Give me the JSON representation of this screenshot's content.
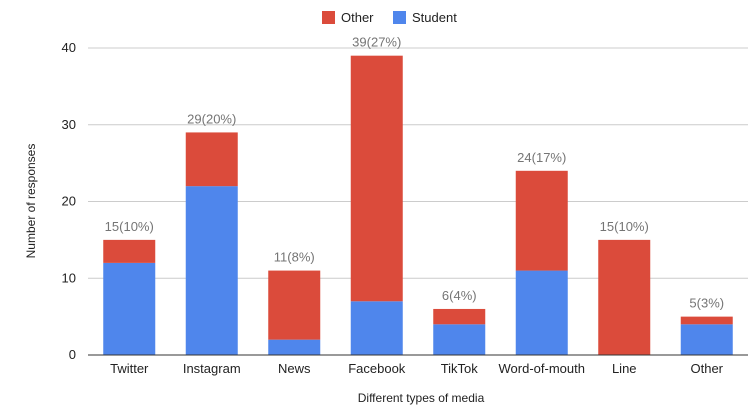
{
  "chart_data": {
    "type": "bar",
    "stacked": true,
    "title": "",
    "xlabel": "Different types of media",
    "ylabel": "Number of responses",
    "ylim": [
      0,
      40
    ],
    "yticks": [
      0,
      10,
      20,
      30,
      40
    ],
    "grid": true,
    "legend_position": "top",
    "categories": [
      "Twitter",
      "Instagram",
      "News",
      "Facebook",
      "TikTok",
      "Word-of-mouth",
      "Line",
      "Other"
    ],
    "series": [
      {
        "name": "Student",
        "color": "#4f86ec",
        "values": [
          12,
          22,
          2,
          7,
          4,
          11,
          0,
          4
        ]
      },
      {
        "name": "Other",
        "color": "#db4b3b",
        "values": [
          3,
          7,
          9,
          32,
          2,
          13,
          15,
          1
        ]
      }
    ],
    "legend_order": [
      "Other",
      "Student"
    ],
    "data_labels": [
      "15(10%)",
      "29(20%)",
      "11(8%)",
      "39(27%)",
      "6(4%)",
      "24(17%)",
      "15(10%)",
      "5(3%)"
    ]
  }
}
